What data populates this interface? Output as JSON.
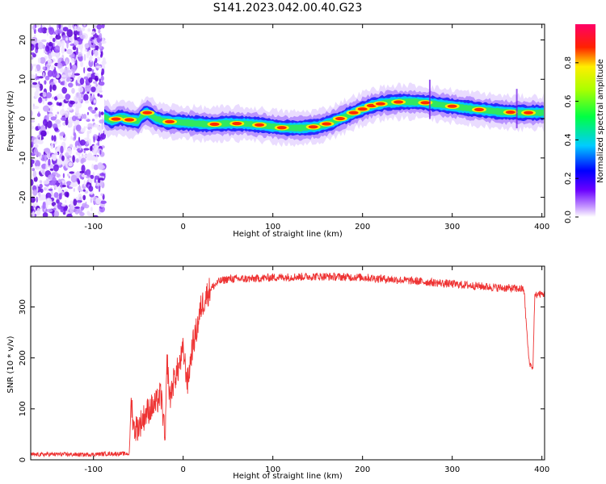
{
  "figure": {
    "title": "S141.2023.042.00.40.G23"
  },
  "chart_data": [
    {
      "type": "heatmap",
      "xlabel": "Height of straight line (km)",
      "ylabel": "Frequency (Hz)",
      "xlim": [
        -170,
        403
      ],
      "ylim": [
        -25,
        24
      ],
      "xticks": [
        -100,
        0,
        100,
        200,
        300,
        400
      ],
      "yticks": [
        -20,
        -10,
        0,
        10,
        20
      ],
      "colorbar": {
        "label": "Normalized spectral amplitude",
        "range": [
          0,
          1
        ],
        "ticks": [
          0.0,
          0.2,
          0.4,
          0.6,
          0.8
        ],
        "colormap": "rainbow (white-violet-blue-cyan-green-yellow-red-magenta)"
      },
      "noise_region_x": [
        -170,
        -88
      ],
      "ridge_frequency_track": [
        {
          "x": -88,
          "f": 0.5
        },
        {
          "x": -80,
          "f": -0.5
        },
        {
          "x": -70,
          "f": 0.3
        },
        {
          "x": -60,
          "f": -0.3
        },
        {
          "x": -50,
          "f": -0.6
        },
        {
          "x": -45,
          "f": 1.0
        },
        {
          "x": -40,
          "f": 1.5
        },
        {
          "x": -30,
          "f": 0.0
        },
        {
          "x": -20,
          "f": -0.7
        },
        {
          "x": 0,
          "f": -1.0
        },
        {
          "x": 30,
          "f": -1.5
        },
        {
          "x": 50,
          "f": -1.2
        },
        {
          "x": 70,
          "f": -1.3
        },
        {
          "x": 90,
          "f": -1.7
        },
        {
          "x": 110,
          "f": -2.3
        },
        {
          "x": 130,
          "f": -2.4
        },
        {
          "x": 150,
          "f": -2.0
        },
        {
          "x": 165,
          "f": -1.0
        },
        {
          "x": 180,
          "f": 0.5
        },
        {
          "x": 195,
          "f": 2.0
        },
        {
          "x": 210,
          "f": 3.3
        },
        {
          "x": 225,
          "f": 4.0
        },
        {
          "x": 245,
          "f": 4.3
        },
        {
          "x": 265,
          "f": 4.2
        },
        {
          "x": 285,
          "f": 3.6
        },
        {
          "x": 305,
          "f": 3.0
        },
        {
          "x": 330,
          "f": 2.3
        },
        {
          "x": 355,
          "f": 1.7
        },
        {
          "x": 380,
          "f": 1.5
        },
        {
          "x": 403,
          "f": 1.5
        }
      ],
      "peak_cores_x": [
        -75,
        -60,
        -40,
        -15,
        35,
        60,
        85,
        110,
        145,
        160,
        175,
        190,
        200,
        210,
        220,
        240,
        270,
        300,
        330,
        365,
        385
      ]
    },
    {
      "type": "line",
      "xlabel": "Height of straight line (km)",
      "ylabel": "SNR (10 * v/v)",
      "xlim": [
        -170,
        403
      ],
      "ylim": [
        0,
        380
      ],
      "xticks": [
        -100,
        0,
        100,
        200,
        300,
        400
      ],
      "yticks": [
        0,
        100,
        200,
        300
      ],
      "series": [
        {
          "color": "#ee3333",
          "x": [
            -170,
            -140,
            -110,
            -80,
            -60,
            -58,
            -55,
            -50,
            -40,
            -30,
            -25,
            -22,
            -20,
            -18,
            -15,
            -10,
            -5,
            0,
            5,
            10,
            15,
            20,
            25,
            30,
            40,
            50,
            75,
            100,
            150,
            200,
            250,
            300,
            350,
            380,
            384,
            386,
            388,
            390,
            392,
            395,
            403
          ],
          "y": [
            10,
            11,
            10,
            12,
            12,
            120,
            60,
            65,
            95,
            110,
            130,
            80,
            25,
            200,
            120,
            160,
            180,
            215,
            150,
            220,
            255,
            300,
            320,
            335,
            350,
            355,
            355,
            358,
            360,
            358,
            352,
            345,
            338,
            335,
            230,
            190,
            185,
            180,
            320,
            325,
            325
          ]
        }
      ]
    }
  ]
}
